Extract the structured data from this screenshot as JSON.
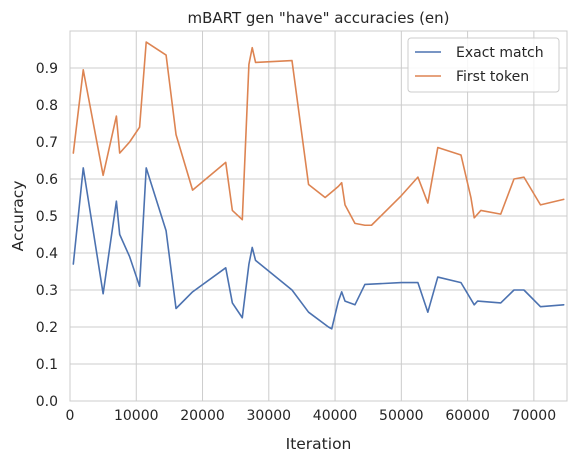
{
  "chart_data": {
    "type": "line",
    "title": "mBART gen \"have\" accuracies (en)",
    "xlabel": "Iteration",
    "ylabel": "Accuracy",
    "xlim": [
      0,
      75000
    ],
    "ylim": [
      0.0,
      1.0
    ],
    "xticks": [
      0,
      10000,
      20000,
      30000,
      40000,
      50000,
      60000,
      70000
    ],
    "yticks": [
      0.0,
      0.1,
      0.2,
      0.3,
      0.4,
      0.5,
      0.6,
      0.7,
      0.8,
      0.9
    ],
    "grid": true,
    "legend_position": "top-right",
    "series": [
      {
        "name": "Exact match",
        "color": "#4c72b0",
        "x": [
          500,
          2000,
          5000,
          7000,
          7500,
          9000,
          10500,
          11500,
          14500,
          16000,
          18500,
          23500,
          24500,
          26000,
          27000,
          27500,
          28000,
          33500,
          36000,
          39000,
          39500,
          40500,
          41000,
          41500,
          43000,
          44500,
          50000,
          52500,
          54000,
          55500,
          59000,
          61000,
          61500,
          65000,
          67000,
          68500,
          71000,
          74500
        ],
        "y": [
          0.37,
          0.63,
          0.29,
          0.54,
          0.45,
          0.39,
          0.31,
          0.63,
          0.46,
          0.25,
          0.295,
          0.36,
          0.265,
          0.225,
          0.37,
          0.415,
          0.38,
          0.3,
          0.24,
          0.2,
          0.195,
          0.27,
          0.295,
          0.27,
          0.26,
          0.315,
          0.32,
          0.32,
          0.24,
          0.335,
          0.32,
          0.26,
          0.27,
          0.265,
          0.3,
          0.3,
          0.255,
          0.26
        ]
      },
      {
        "name": "First token",
        "color": "#dd8452",
        "x": [
          500,
          2000,
          5000,
          7000,
          7500,
          9000,
          10500,
          11500,
          14500,
          16000,
          18500,
          23500,
          24500,
          26000,
          27000,
          27500,
          28000,
          33500,
          36000,
          38500,
          39500,
          40500,
          41000,
          41500,
          43000,
          44500,
          45500,
          50000,
          52500,
          54000,
          55500,
          59000,
          60500,
          61000,
          62000,
          65000,
          67000,
          68500,
          71000,
          74500
        ],
        "y": [
          0.67,
          0.895,
          0.61,
          0.77,
          0.67,
          0.7,
          0.74,
          0.97,
          0.935,
          0.72,
          0.57,
          0.645,
          0.515,
          0.49,
          0.91,
          0.955,
          0.915,
          0.92,
          0.585,
          0.55,
          0.565,
          0.58,
          0.59,
          0.53,
          0.48,
          0.475,
          0.475,
          0.555,
          0.605,
          0.535,
          0.685,
          0.665,
          0.55,
          0.495,
          0.515,
          0.505,
          0.6,
          0.605,
          0.53,
          0.545
        ]
      }
    ]
  }
}
